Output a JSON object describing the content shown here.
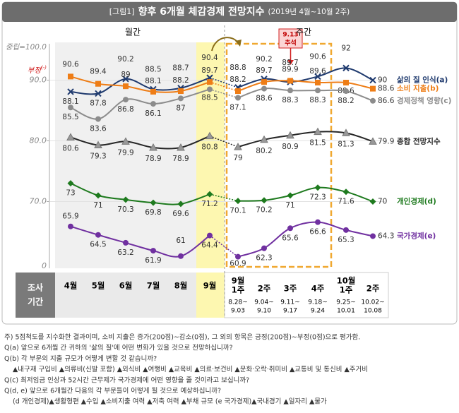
{
  "figure_label": "[그림1]",
  "chart_data": {
    "type": "line",
    "title": "향후 6개월 체감경제 전망지수",
    "subtitle": "(2019년 4월~10월 2주)",
    "section_labels": [
      "월간",
      "주간"
    ],
    "period_header": [
      "조사",
      "기간"
    ],
    "categories": [
      [
        "4월"
      ],
      [
        "5월"
      ],
      [
        "6월"
      ],
      [
        "7월"
      ],
      [
        "8월"
      ],
      [
        "9월"
      ],
      [
        "9월",
        "1주"
      ],
      [
        "2주"
      ],
      [
        "3주"
      ],
      [
        "4주"
      ],
      [
        "10월",
        "1주"
      ],
      [
        "2주"
      ]
    ],
    "date_ranges": [
      null,
      null,
      null,
      null,
      null,
      null,
      [
        "8.28~",
        "9.03"
      ],
      [
        "9.04~",
        "9.10"
      ],
      [
        "9.11~",
        "9.17"
      ],
      [
        "9.18~",
        "9.24"
      ],
      [
        "9.25~",
        "10.01"
      ],
      [
        "10.02~",
        "10.08"
      ]
    ],
    "ylim": [
      59,
      96
    ],
    "yticks": [
      {
        "value": 70,
        "label": "70.0"
      },
      {
        "value": 80,
        "label": "80.0"
      },
      {
        "value": 90,
        "label": "90.0"
      }
    ],
    "axis_start_label": "0",
    "neutral_label": "중립=100.0",
    "negative_label": [
      "부정",
      "(-)"
    ],
    "annotation": [
      "9.13",
      "추석"
    ],
    "grid": true,
    "series": [
      {
        "name": "삶의 질 인식(a)",
        "color": "#1f3a6e",
        "marker": "x",
        "values": [
          88.1,
          87.8,
          90.2,
          88.5,
          88.7,
          90.4,
          88.8,
          90.2,
          89.7,
          90.6,
          92.0,
          90.0
        ]
      },
      {
        "name": "소비 지출(b)",
        "color": "#ee7d16",
        "marker": "square",
        "values": [
          90.6,
          89.4,
          89.0,
          88.1,
          88.2,
          89.7,
          88.2,
          89.7,
          89.9,
          89.6,
          89.6,
          88.6
        ]
      },
      {
        "name": "경제정책 영향(c)",
        "color": "#8c8c8c",
        "marker": "circle",
        "values": [
          85.5,
          83.6,
          86.8,
          86.1,
          87.0,
          88.5,
          87.1,
          88.6,
          88.3,
          88.3,
          88.2,
          86.6
        ]
      },
      {
        "name": "종합 전망지수",
        "color": "#262626",
        "marker": "triangle",
        "values": [
          80.6,
          79.3,
          79.9,
          78.9,
          78.9,
          80.8,
          79.0,
          80.2,
          80.9,
          81.5,
          81.3,
          79.9
        ]
      },
      {
        "name": "개인경제(d)",
        "color": "#1e7a1e",
        "marker": "diamond",
        "values": [
          73.0,
          71.0,
          70.3,
          69.8,
          69.6,
          71.2,
          70.1,
          70.2,
          71.0,
          72.3,
          71.6,
          70.0
        ]
      },
      {
        "name": "국가경제(e)",
        "color": "#7030a0",
        "marker": "circle",
        "values": [
          65.9,
          64.5,
          63.2,
          61.9,
          61.0,
          64.4,
          60.9,
          62.3,
          65.6,
          66.6,
          65.3,
          64.3
        ]
      }
    ]
  },
  "notes": [
    "주) 5점척도를 지수화한 결과이며, 소비 지출은 증가(200점)~감소(0점), 그 외의 항목은 긍정(200점)~부정(0점)으로 평가함.",
    "Q(a) 앞으로 6개월 간 귀하의 '삶의 질'에 어떤 변화가 있을 것으로 전망하십니까?",
    "Q(b) 각 부문의 지출 규모가 어떻게 변할 것 같습니까?",
    "▲내구재 구입비 ▲의류비(신발 포함) ▲외식비 ▲여행비 ▲교육비 ▲의료·보건비 ▲문화·오락·취미비 ▲교통비 및 통신비 ▲주거비",
    "Q(c) 최저임금 인상과 52시간 근무제가 국가경제에 어떤 영향을 줄 것이라고 보십니까?",
    "Q(d, e) 앞으로 6개월간 다음의 각 부문들이 어떻게 될 것으로 예상하십니까?",
    "(d 개인경제)▲생활형편 ▲수입 ▲소비지출 여력 ▲저축 여력 ▲부채 규모 (e 국가경제)▲국내경기 ▲일자리 ▲물가"
  ]
}
